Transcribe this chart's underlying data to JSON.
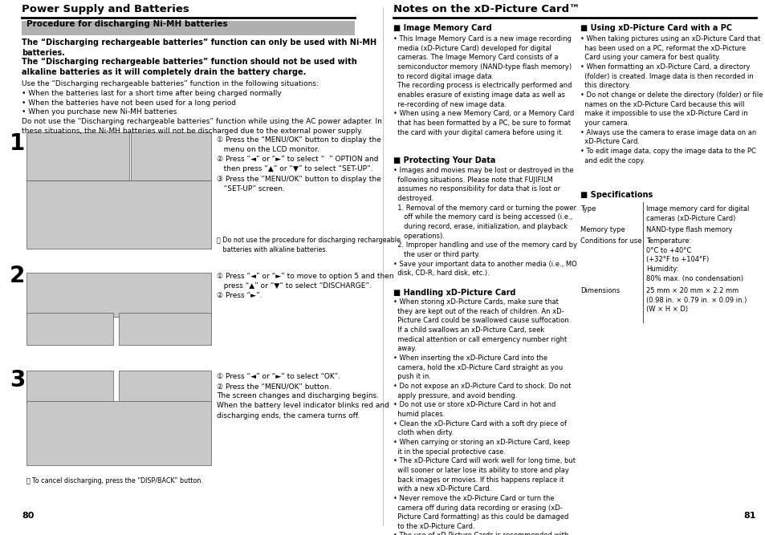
{
  "bg_color": "#ffffff",
  "left_page": {
    "title": "Power Supply and Batteries",
    "section_header": "Procedure for discharging Ni-MH batteries",
    "page_number": "80"
  },
  "right_page": {
    "title": "Notes on the xD-Picture Card™",
    "page_number": "81"
  }
}
